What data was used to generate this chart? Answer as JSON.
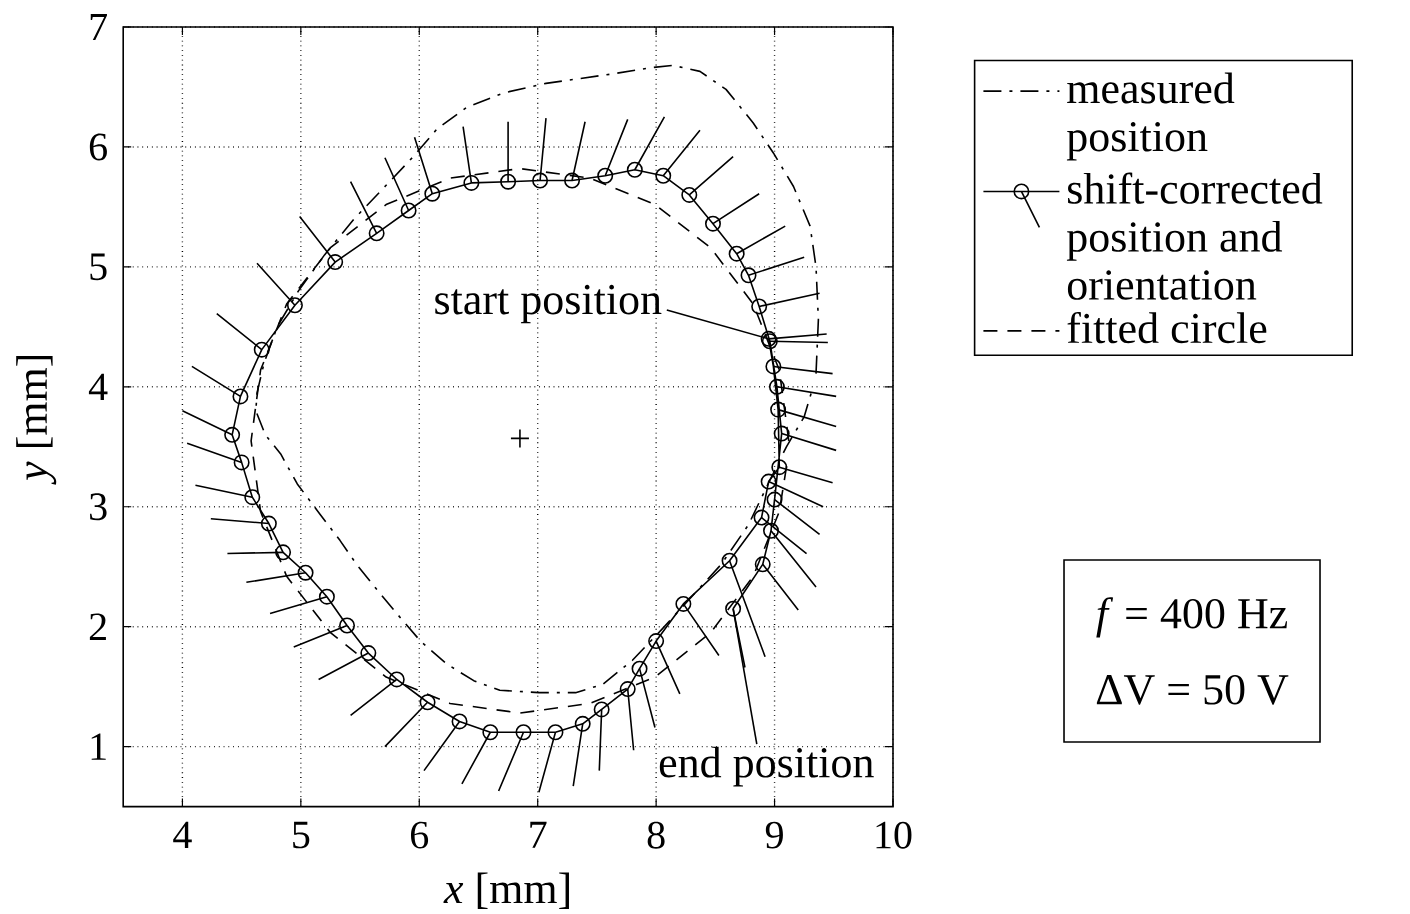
{
  "chart_data": {
    "type": "line",
    "xlabel": "*x* [mm]",
    "ylabel": "*y* [mm]",
    "xlim": [
      3.5,
      10
    ],
    "ylim": [
      0.5,
      7
    ],
    "xticks": [
      4,
      5,
      6,
      7,
      8,
      9,
      10
    ],
    "yticks": [
      1,
      2,
      3,
      4,
      5,
      6,
      7
    ],
    "grid": true,
    "legend": "top right",
    "series": [
      {
        "name": "measured position",
        "color": "#000000",
        "line_style": "dashdot",
        "x": [
          9.35,
          9.37,
          9.35,
          9.3,
          9.16,
          8.99,
          8.82,
          8.59,
          8.37,
          8.14,
          7.95,
          7.64,
          7.07,
          6.71,
          6.4,
          6.15,
          5.95,
          5.72,
          5.45,
          5.2,
          4.98,
          4.8,
          4.69,
          4.63,
          4.62,
          4.7,
          4.83,
          4.97,
          5.16,
          5.33,
          5.47,
          5.65,
          5.81,
          6.01,
          6.23,
          6.46,
          6.68,
          7.01,
          7.32,
          7.55,
          7.8,
          8.05,
          8.3,
          8.55,
          8.78,
          8.95,
          9.1,
          9.25,
          9.31
        ],
        "values": [
          4.11,
          4.56,
          5.0,
          5.34,
          5.67,
          5.95,
          6.2,
          6.48,
          6.63,
          6.68,
          6.66,
          6.61,
          6.53,
          6.45,
          6.33,
          6.15,
          5.92,
          5.68,
          5.4,
          5.1,
          4.8,
          4.5,
          4.2,
          3.95,
          3.8,
          3.6,
          3.44,
          3.19,
          2.94,
          2.72,
          2.52,
          2.3,
          2.11,
          1.88,
          1.69,
          1.55,
          1.47,
          1.45,
          1.45,
          1.52,
          1.72,
          1.98,
          2.25,
          2.52,
          2.85,
          3.2,
          3.5,
          3.75,
          3.95
        ]
      },
      {
        "name": "shift-corrected position and orientation",
        "color": "#000000",
        "marker": "circle",
        "line_style": "solid",
        "x": [
          8.95,
          8.99,
          9.03,
          9.04,
          8.95,
          8.89,
          8.62,
          8.23,
          8.0,
          7.86,
          7.76,
          7.54,
          7.38,
          7.15,
          6.88,
          6.6,
          6.34,
          6.07,
          5.81,
          5.57,
          5.39,
          5.22,
          5.04,
          4.85,
          4.73,
          4.59,
          4.5,
          4.42,
          4.49,
          4.67,
          4.95,
          5.29,
          5.64,
          5.91,
          6.11,
          6.44,
          6.75,
          7.02,
          7.29,
          7.57,
          7.82,
          8.06,
          8.28,
          8.48,
          8.68,
          8.78,
          8.87,
          8.96,
          9.02,
          9.06,
          9.0,
          8.97,
          8.9,
          8.65
        ],
        "values": [
          4.4,
          4.17,
          3.81,
          3.33,
          3.21,
          2.91,
          2.55,
          2.19,
          1.88,
          1.65,
          1.48,
          1.31,
          1.19,
          1.12,
          1.12,
          1.12,
          1.21,
          1.37,
          1.56,
          1.78,
          2.01,
          2.25,
          2.45,
          2.62,
          2.86,
          3.08,
          3.37,
          3.6,
          3.92,
          4.31,
          4.68,
          5.04,
          5.28,
          5.47,
          5.61,
          5.7,
          5.71,
          5.72,
          5.72,
          5.76,
          5.81,
          5.76,
          5.6,
          5.36,
          5.11,
          4.93,
          4.67,
          4.38,
          4.0,
          3.61,
          3.06,
          2.8,
          2.52,
          2.15
        ]
      },
      {
        "color": "#000000",
        "line_style": "solid",
        "x": [
          8.95,
          9.44,
          null,
          8.99,
          9.49,
          null,
          9.03,
          9.52,
          null,
          9.04,
          9.49,
          null,
          8.95,
          9.41,
          null,
          8.89,
          9.27,
          null,
          8.62,
          8.92,
          null,
          8.23,
          8.53,
          null,
          8.0,
          8.2,
          null,
          7.86,
          7.99,
          null,
          7.76,
          7.81,
          null,
          7.54,
          7.52,
          null,
          7.38,
          7.3,
          null,
          7.15,
          7.01,
          null,
          6.88,
          6.67,
          null,
          6.6,
          6.36,
          null,
          6.34,
          6.04,
          null,
          6.07,
          5.71,
          null,
          5.81,
          5.42,
          null,
          5.57,
          5.15,
          null,
          5.39,
          4.94,
          null,
          5.22,
          4.74,
          null,
          5.04,
          4.54,
          null,
          4.85,
          4.38,
          null,
          4.73,
          4.24,
          null,
          4.59,
          4.11,
          null,
          4.5,
          4.04,
          null,
          4.42,
          4.0,
          null,
          4.49,
          4.08,
          null,
          4.67,
          4.29,
          null,
          4.95,
          4.63,
          null,
          5.29,
          4.99,
          null,
          5.64,
          5.42,
          null,
          5.91,
          5.71,
          null,
          6.11,
          5.96,
          null,
          6.44,
          6.37,
          null,
          6.75,
          6.75,
          null,
          7.02,
          7.07,
          null,
          7.29,
          7.4,
          null,
          7.57,
          7.76,
          null,
          7.82,
          8.07,
          null,
          8.06,
          8.37,
          null,
          8.28,
          8.65,
          null,
          8.48,
          8.87,
          null,
          8.68,
          9.09,
          null,
          8.78,
          9.25,
          null,
          8.87,
          9.38,
          null,
          8.96,
          9.45,
          null,
          9.02,
          9.52,
          null,
          9.06,
          9.52,
          null,
          9.0,
          9.38,
          null,
          8.97,
          9.35,
          null,
          8.9,
          9.2,
          null,
          8.65,
          8.75
        ],
        "values": [
          4.4,
          4.44,
          null,
          4.17,
          4.11,
          null,
          3.81,
          3.67,
          null,
          3.33,
          3.2,
          null,
          3.21,
          3.0,
          null,
          2.91,
          2.61,
          null,
          2.55,
          1.75,
          null,
          2.19,
          1.76,
          null,
          1.88,
          1.44,
          null,
          1.65,
          1.16,
          null,
          1.48,
          0.97,
          null,
          1.31,
          0.8,
          null,
          1.19,
          0.67,
          null,
          1.12,
          0.62,
          null,
          1.12,
          0.63,
          null,
          1.12,
          0.69,
          null,
          1.21,
          0.8,
          null,
          1.37,
          1.0,
          null,
          1.56,
          1.26,
          null,
          1.78,
          1.56,
          null,
          2.01,
          1.83,
          null,
          2.25,
          2.11,
          null,
          2.45,
          2.37,
          null,
          2.62,
          2.61,
          null,
          2.86,
          2.9,
          null,
          3.08,
          3.18,
          null,
          3.37,
          3.53,
          null,
          3.6,
          3.8,
          null,
          3.92,
          4.17,
          null,
          4.31,
          4.61,
          null,
          4.68,
          5.03,
          null,
          5.04,
          5.42,
          null,
          5.28,
          5.71,
          null,
          5.47,
          5.91,
          null,
          5.61,
          6.08,
          null,
          5.7,
          6.17,
          null,
          5.71,
          6.21,
          null,
          5.72,
          6.24,
          null,
          5.72,
          6.21,
          null,
          5.76,
          6.23,
          null,
          5.81,
          6.25,
          null,
          5.76,
          6.14,
          null,
          5.6,
          5.92,
          null,
          5.36,
          5.61,
          null,
          5.11,
          5.34,
          null,
          4.93,
          5.08,
          null,
          4.67,
          4.78,
          null,
          4.38,
          4.37,
          null,
          4.0,
          3.92,
          null,
          3.61,
          3.47,
          null,
          3.06,
          2.77,
          null,
          2.8,
          2.33,
          null,
          2.52,
          2.14,
          null,
          2.15,
          1.66
        ]
      },
      {
        "name": "fitted circle",
        "color": "#000000",
        "line_style": "dashed",
        "x": [
          9.12,
          9.04,
          8.82,
          8.46,
          7.99,
          7.44,
          6.85,
          6.26,
          5.72,
          5.25,
          4.88,
          4.66,
          4.58,
          4.66,
          4.88,
          5.25,
          5.72,
          6.26,
          6.85,
          7.44,
          7.99,
          8.46,
          8.82,
          9.04,
          9.11
        ],
        "values": [
          3.55,
          4.14,
          4.69,
          5.16,
          5.52,
          5.74,
          5.82,
          5.74,
          5.52,
          5.16,
          4.69,
          4.14,
          3.55,
          2.96,
          2.42,
          1.95,
          1.58,
          1.36,
          1.28,
          1.36,
          1.58,
          1.95,
          2.42,
          2.96,
          3.39
        ]
      },
      {
        "type": "scatter",
        "color": "#000000",
        "marker": "cross",
        "x": [
          6.85
        ],
        "values": [
          3.57
        ]
      }
    ],
    "annotations": [
      {
        "text": "start position",
        "x": 8.95,
        "y": 4.4
      },
      {
        "text": "end position",
        "x": 8.65,
        "y": 2.15
      },
      "*f* = 400 Hz",
      "ΔV = 50 V"
    ]
  }
}
